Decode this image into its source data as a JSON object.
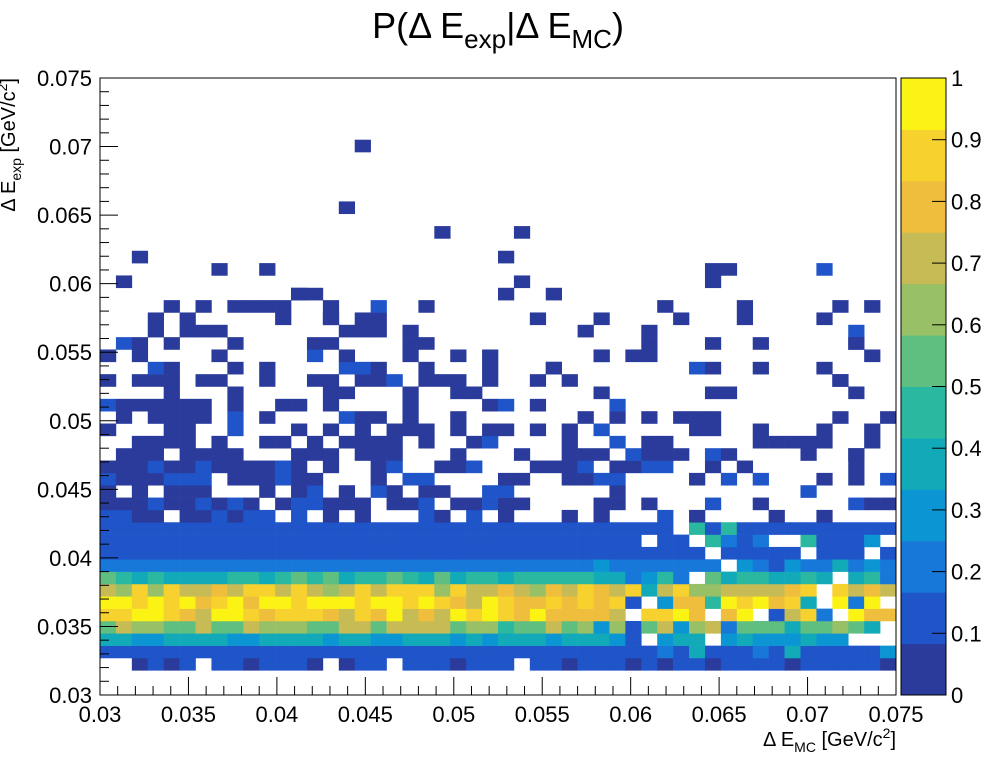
{
  "chart_data": {
    "type": "heatmap",
    "title": "P(Δ E_exp|Δ E_MC)",
    "title_parts": {
      "main": "P(Δ E",
      "sub1": "exp",
      "mid": "|Δ E",
      "sub2": "MC",
      "end": ")"
    },
    "xlabel_parts": {
      "main": "Δ E",
      "sub": "MC",
      "unit": " [GeV/c",
      "sup": "2",
      "end": "]"
    },
    "ylabel_parts": {
      "main": "Δ E",
      "sub": "exp",
      "unit": " [GeV/c",
      "sup": "2",
      "end": "]"
    },
    "xlim": [
      0.03,
      0.075
    ],
    "ylim": [
      0.03,
      0.075
    ],
    "x_ticks": [
      "0.03",
      "0.035",
      "0.04",
      "0.045",
      "0.05",
      "0.055",
      "0.06",
      "0.065",
      "0.07",
      "0.075"
    ],
    "y_ticks": [
      "0.03",
      "0.035",
      "0.04",
      "0.045",
      "0.05",
      "0.055",
      "0.06",
      "0.065",
      "0.07",
      "0.075"
    ],
    "z_range": [
      0,
      1
    ],
    "z_ticks": [
      "0",
      "0.1",
      "0.2",
      "0.3",
      "0.4",
      "0.5",
      "0.6",
      "0.7",
      "0.8",
      "0.9",
      "1"
    ],
    "bins": {
      "x_count": 50,
      "y_count": 50
    },
    "colormap": [
      "#2a3b9b",
      "#1f55c9",
      "#1778d9",
      "#0c95d3",
      "#12aab8",
      "#2bb8a0",
      "#5fbf80",
      "#98c066",
      "#c6bb55",
      "#eebe3c",
      "#f7d22e",
      "#fbf313"
    ],
    "density_model": {
      "band_center": 0.0365,
      "band_halfwidth": 0.0017,
      "upper_edge": 0.0425,
      "lower_edge": 0.0325
    },
    "isolated_cells": [
      [
        0.0445,
        0.07
      ],
      [
        0.044,
        0.0655
      ],
      [
        0.0495,
        0.064
      ],
      [
        0.054,
        0.064
      ],
      [
        0.032,
        0.062
      ],
      [
        0.0525,
        0.062
      ],
      [
        0.0365,
        0.061
      ],
      [
        0.0395,
        0.061
      ],
      [
        0.0315,
        0.0605
      ],
      [
        0.0525,
        0.0595
      ],
      [
        0.0415,
        0.0595
      ],
      [
        0.038,
        0.0585
      ],
      [
        0.039,
        0.0585
      ],
      [
        0.048,
        0.0585
      ],
      [
        0.043,
        0.0575
      ],
      [
        0.0445,
        0.0575
      ],
      [
        0.0585,
        0.0575
      ],
      [
        0.071,
        0.0575
      ],
      [
        0.073,
        0.0555
      ],
      [
        0.074,
        0.0545
      ],
      [
        0.0555,
        0.054
      ],
      [
        0.058,
        0.0545
      ],
      [
        0.06,
        0.0545
      ],
      [
        0.072,
        0.0525
      ],
      [
        0.0625,
        0.0505
      ],
      [
        0.0645,
        0.0505
      ],
      [
        0.071,
        0.0495
      ],
      [
        0.0735,
        0.0495
      ],
      [
        0.069,
        0.0485
      ],
      [
        0.073,
        0.0475
      ],
      [
        0.071,
        0.0455
      ],
      [
        0.073,
        0.0455
      ]
    ]
  }
}
